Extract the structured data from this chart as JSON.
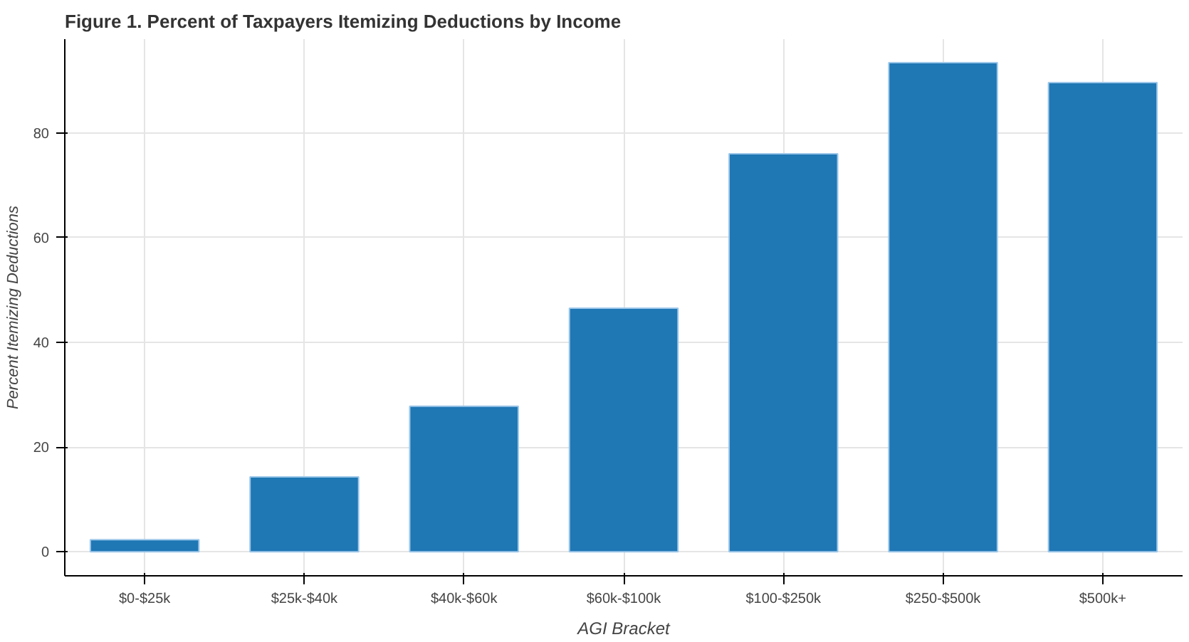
{
  "chart_data": {
    "type": "bar",
    "title": "Figure 1. Percent of Taxpayers Itemizing Deductions by Income",
    "xlabel": "AGI Bracket",
    "ylabel": "Percent Itemizing Deductions",
    "categories": [
      "$0-$25k",
      "$25k-$40k",
      "$40k-$60k",
      "$60k-$100k",
      "$100-$250k",
      "$250-$500k",
      "$500k+"
    ],
    "values": [
      2.3,
      14.3,
      27.8,
      46.5,
      76.0,
      93.4,
      89.6
    ],
    "color": "#1f77b4",
    "ylim": [
      -4.6,
      97.9
    ],
    "yticks": [
      0,
      20,
      40,
      60,
      80
    ],
    "grid": true
  }
}
